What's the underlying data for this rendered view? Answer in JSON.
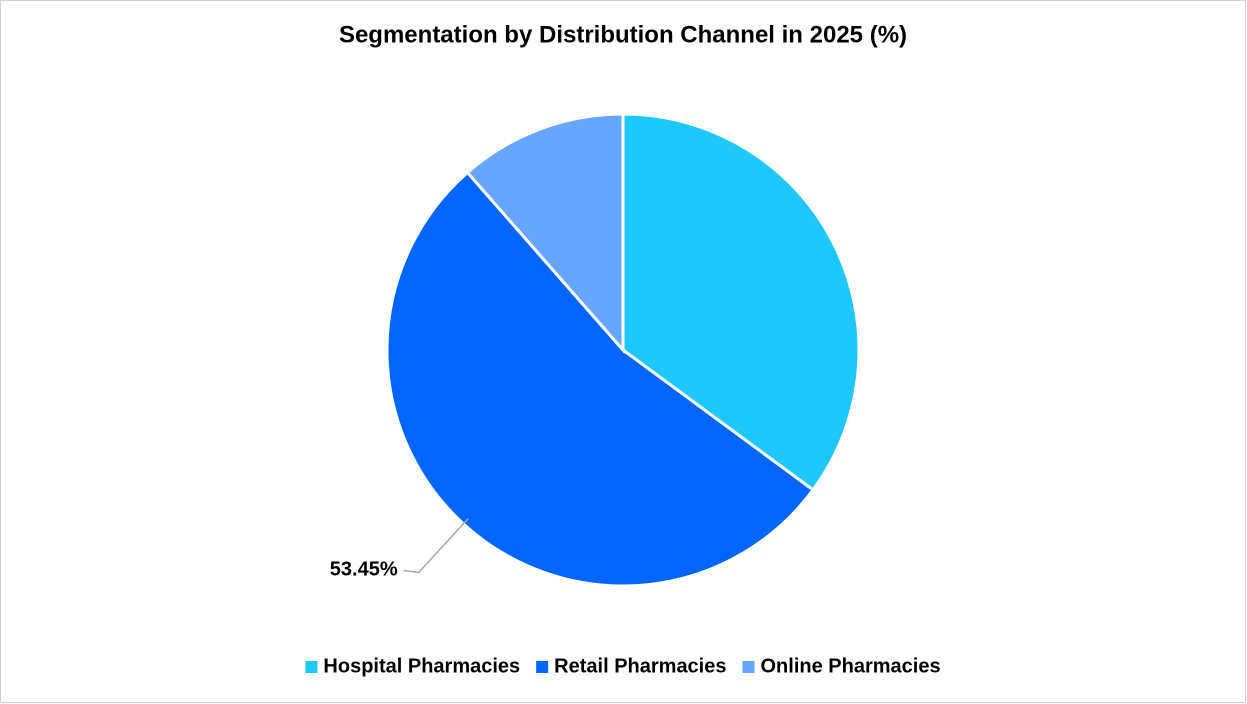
{
  "chart_data": {
    "type": "pie",
    "title": "Segmentation by Distribution Channel in 2025 (%)",
    "categories": [
      "Hospital Pharmacies",
      "Retail Pharmacies",
      "Online Pharmacies"
    ],
    "values": [
      35.1,
      53.45,
      11.45
    ],
    "value_labels": [
      null,
      "53.45%",
      null
    ],
    "colors": [
      "#1ec8fc",
      "#0066ff",
      "#66a6ff"
    ],
    "legend": "bottom"
  }
}
